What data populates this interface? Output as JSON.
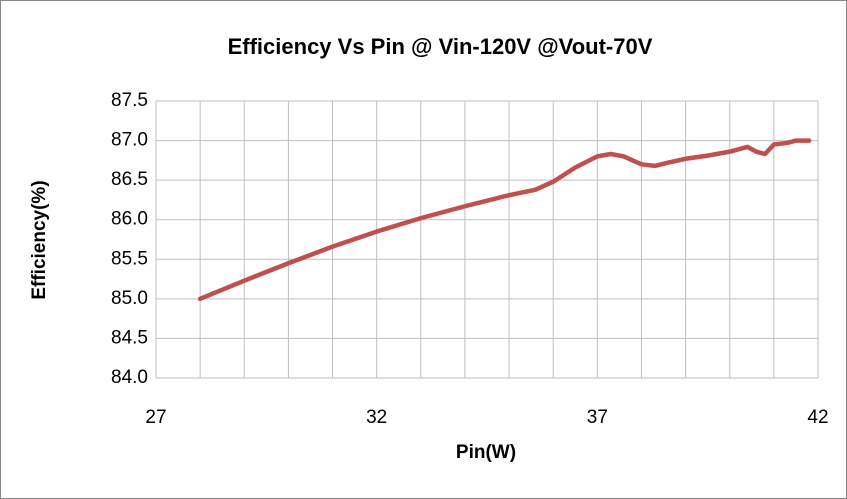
{
  "chart_data": {
    "type": "line",
    "title": "Efficiency Vs Pin @ Vin-120V @Vout-70V",
    "x_label": "Pin(W)",
    "y_label": "Efficiency(%)",
    "x": [
      28,
      29,
      30,
      31,
      32,
      33,
      34,
      35,
      35.6,
      36,
      36.5,
      37,
      37.3,
      37.6,
      38,
      38.3,
      38.6,
      39,
      39.5,
      40,
      40.4,
      40.6,
      40.8,
      41,
      41.3,
      41.5,
      41.8
    ],
    "series": [
      {
        "name": "Efficiency",
        "color": "#c0504d",
        "values": [
          85.0,
          85.23,
          85.45,
          85.66,
          85.85,
          86.02,
          86.17,
          86.31,
          86.38,
          86.48,
          86.66,
          86.8,
          86.83,
          86.8,
          86.7,
          86.68,
          86.72,
          86.77,
          86.81,
          86.86,
          86.92,
          86.86,
          86.83,
          86.95,
          86.97,
          87.0,
          87.0
        ]
      }
    ],
    "xlim": [
      27,
      42
    ],
    "xticks": [
      27,
      32,
      37,
      42
    ],
    "xgrid": [
      28,
      29,
      30,
      31,
      33,
      34,
      35,
      36,
      38,
      39,
      40,
      41
    ],
    "ylim": [
      84,
      87.5
    ],
    "yticks": [
      {
        "value": 84,
        "label": "84.0"
      },
      84.5,
      {
        "value": 85,
        "label": "85.0"
      },
      85.5,
      {
        "value": 86,
        "label": "86.0"
      },
      86.5,
      {
        "value": 87,
        "label": "87.0"
      },
      87.5
    ],
    "grid": true
  }
}
